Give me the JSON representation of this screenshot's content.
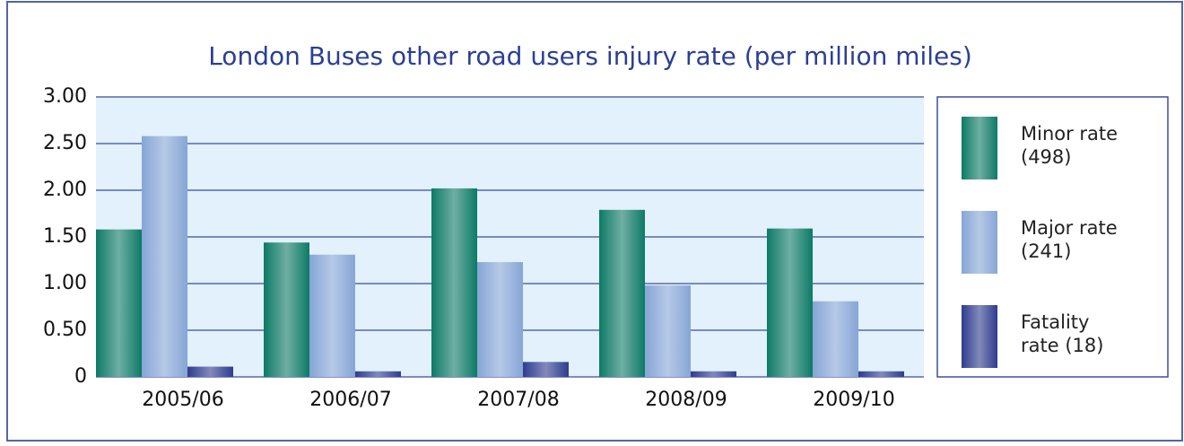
{
  "chart_data": {
    "type": "bar",
    "title": "London Buses other road users injury rate (per million miles)",
    "categories": [
      "2005/06",
      "2006/07",
      "2007/08",
      "2008/09",
      "2009/10"
    ],
    "series": [
      {
        "name": "Minor rate (498)",
        "color": "#0d7a66",
        "values": [
          1.58,
          1.44,
          2.02,
          1.79,
          1.59
        ]
      },
      {
        "name": "Major rate (241)",
        "color": "#86a5d6",
        "values": [
          2.58,
          1.31,
          1.23,
          0.98,
          0.81
        ]
      },
      {
        "name": "Fatality rate (18)",
        "color": "#2e3c8e",
        "values": [
          0.11,
          0.06,
          0.16,
          0.06,
          0.06
        ]
      }
    ],
    "ylim": [
      0,
      3
    ],
    "yticks": [
      0,
      {
        "value": 0.5,
        "label": "0.50"
      },
      {
        "value": 1,
        "label": "1.00"
      },
      {
        "value": 1.5,
        "label": "1.50"
      },
      {
        "value": 2,
        "label": "2.00"
      },
      {
        "value": 2.5,
        "label": "2.50"
      },
      {
        "value": 3,
        "label": "3.00"
      }
    ],
    "grid": true
  }
}
